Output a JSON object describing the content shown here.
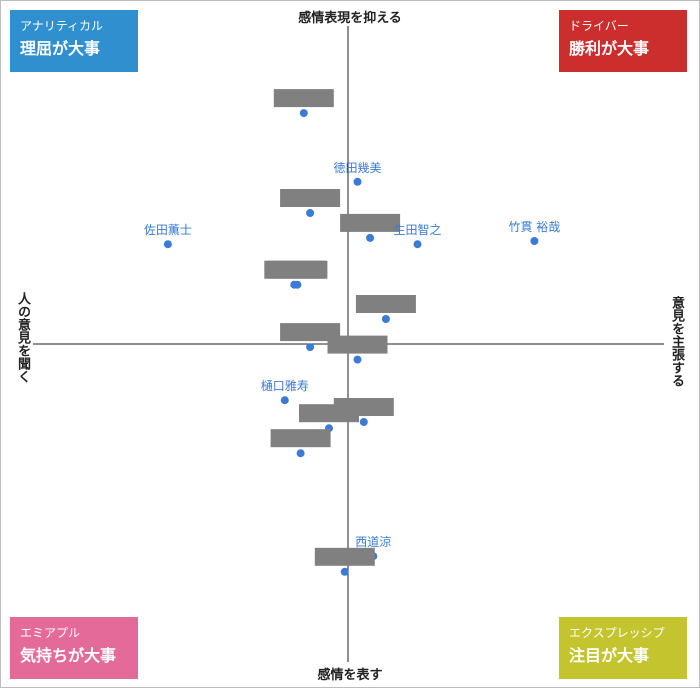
{
  "quadrants": {
    "top_left": {
      "sub": "アナリティカル",
      "main": "理屈が大事",
      "color": "#2f8fcf"
    },
    "top_right": {
      "sub": "ドライバー",
      "main": "勝利が大事",
      "color": "#cc2e2e"
    },
    "bottom_left": {
      "sub": "エミアプル",
      "main": "気持ちが大事",
      "color": "#e46a9a"
    },
    "bottom_right": {
      "sub": "エクスプレッシプ",
      "main": "注目が大事",
      "color": "#c4c42e"
    }
  },
  "axes": {
    "top": "感情表現を抑える",
    "bottom": "感情を表す",
    "left": "人の意見を聞く",
    "right": "意見を主張する"
  },
  "chart_data": {
    "type": "scatter",
    "xlim": [
      -1,
      1
    ],
    "ylim": [
      -1,
      1
    ],
    "point_color": "#3a7bd5",
    "label_color": "#3a7bd5",
    "redaction_color": "#808080",
    "grid": false,
    "points": [
      {
        "name": "",
        "x": -0.14,
        "y": 0.74,
        "redacted": true
      },
      {
        "name": "徳田幾美",
        "x": 0.03,
        "y": 0.52,
        "redacted": false
      },
      {
        "name": "",
        "x": -0.12,
        "y": 0.42,
        "redacted": true
      },
      {
        "name": "",
        "x": 0.07,
        "y": 0.34,
        "redacted": true
      },
      {
        "name": "生田智之",
        "x": 0.22,
        "y": 0.32,
        "redacted": false
      },
      {
        "name": "竹貫 裕哉",
        "x": 0.59,
        "y": 0.33,
        "redacted": false
      },
      {
        "name": "佐田薫士",
        "x": -0.57,
        "y": 0.32,
        "redacted": false
      },
      {
        "name": "",
        "x": -0.17,
        "y": 0.19,
        "redacted": true
      },
      {
        "name": "",
        "x": -0.16,
        "y": 0.19,
        "redacted": true
      },
      {
        "name": "",
        "x": 0.12,
        "y": 0.08,
        "redacted": true
      },
      {
        "name": "",
        "x": -0.12,
        "y": -0.01,
        "redacted": true
      },
      {
        "name": "",
        "x": 0.03,
        "y": -0.05,
        "redacted": true
      },
      {
        "name": "樋口雅寿",
        "x": -0.2,
        "y": -0.18,
        "redacted": false
      },
      {
        "name": "",
        "x": 0.05,
        "y": -0.25,
        "redacted": true
      },
      {
        "name": "",
        "x": -0.06,
        "y": -0.27,
        "redacted": true
      },
      {
        "name": "",
        "x": -0.15,
        "y": -0.35,
        "redacted": true
      },
      {
        "name": "西道涼",
        "x": 0.08,
        "y": -0.68,
        "redacted": false
      },
      {
        "name": "",
        "x": -0.01,
        "y": -0.73,
        "redacted": true
      }
    ]
  }
}
